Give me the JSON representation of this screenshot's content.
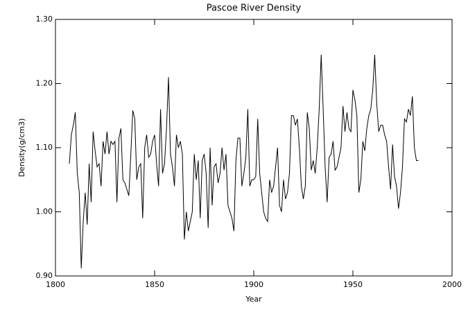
{
  "chart_data": {
    "type": "line",
    "title": "Pascoe River Density",
    "xlabel": "Year",
    "ylabel": "Density(g/cm3)",
    "xlim": [
      1800,
      2000
    ],
    "xticks": [
      1800,
      1850,
      1900,
      1950,
      2000
    ],
    "ylim": [
      0.9,
      1.3
    ],
    "yticks": [
      {
        "value": 0.9,
        "label": "0.90"
      },
      {
        "value": 1.0,
        "label": "1.00"
      },
      {
        "value": 1.1,
        "label": "1.10"
      },
      {
        "value": 1.2,
        "label": "1.20"
      },
      {
        "value": 1.3,
        "label": "1.30"
      }
    ],
    "x": [
      1807,
      1808,
      1809,
      1810,
      1811,
      1812,
      1813,
      1814,
      1815,
      1816,
      1817,
      1818,
      1819,
      1820,
      1821,
      1822,
      1823,
      1824,
      1825,
      1826,
      1827,
      1828,
      1829,
      1830,
      1831,
      1832,
      1833,
      1834,
      1835,
      1836,
      1837,
      1838,
      1839,
      1840,
      1841,
      1842,
      1843,
      1844,
      1845,
      1846,
      1847,
      1848,
      1849,
      1850,
      1851,
      1852,
      1853,
      1854,
      1855,
      1856,
      1857,
      1858,
      1859,
      1860,
      1861,
      1862,
      1863,
      1864,
      1865,
      1866,
      1867,
      1868,
      1869,
      1870,
      1871,
      1872,
      1873,
      1874,
      1875,
      1876,
      1877,
      1878,
      1879,
      1880,
      1881,
      1882,
      1883,
      1884,
      1885,
      1886,
      1887,
      1888,
      1889,
      1890,
      1891,
      1892,
      1893,
      1894,
      1895,
      1896,
      1897,
      1898,
      1899,
      1900,
      1901,
      1902,
      1903,
      1904,
      1905,
      1906,
      1907,
      1908,
      1909,
      1910,
      1911,
      1912,
      1913,
      1914,
      1915,
      1916,
      1917,
      1918,
      1919,
      1920,
      1921,
      1922,
      1923,
      1924,
      1925,
      1926,
      1927,
      1928,
      1929,
      1930,
      1931,
      1932,
      1933,
      1934,
      1935,
      1936,
      1937,
      1938,
      1939,
      1940,
      1941,
      1942,
      1943,
      1944,
      1945,
      1946,
      1947,
      1948,
      1949,
      1950,
      1951,
      1952,
      1953,
      1954,
      1955,
      1956,
      1957,
      1958,
      1959,
      1960,
      1961,
      1962,
      1963,
      1964,
      1965,
      1966,
      1967,
      1968,
      1969,
      1970,
      1971,
      1972,
      1973,
      1974,
      1975,
      1976,
      1977,
      1978,
      1979,
      1980,
      1981,
      1982,
      1983
    ],
    "series": [
      {
        "color": "#000000",
        "values": [
          1.075,
          1.12,
          1.135,
          1.155,
          1.06,
          1.03,
          0.912,
          0.985,
          1.03,
          0.98,
          1.075,
          1.015,
          1.125,
          1.095,
          1.07,
          1.075,
          1.04,
          1.11,
          1.09,
          1.125,
          1.09,
          1.11,
          1.105,
          1.11,
          1.015,
          1.115,
          1.13,
          1.05,
          1.045,
          1.035,
          1.025,
          1.09,
          1.158,
          1.145,
          1.05,
          1.07,
          1.075,
          0.99,
          1.1,
          1.12,
          1.085,
          1.09,
          1.11,
          1.12,
          1.075,
          1.04,
          1.16,
          1.06,
          1.075,
          1.13,
          1.21,
          1.09,
          1.07,
          1.04,
          1.12,
          1.1,
          1.11,
          1.09,
          0.957,
          1.0,
          0.97,
          0.985,
          1.0,
          1.09,
          1.05,
          1.08,
          0.99,
          1.08,
          1.09,
          1.06,
          0.975,
          1.1,
          1.01,
          1.07,
          1.075,
          1.045,
          1.06,
          1.1,
          1.065,
          1.09,
          1.01,
          1.0,
          0.99,
          0.97,
          1.08,
          1.115,
          1.115,
          1.04,
          1.06,
          1.085,
          1.16,
          1.04,
          1.05,
          1.05,
          1.055,
          1.145,
          1.06,
          1.03,
          1.0,
          0.99,
          0.985,
          1.05,
          1.03,
          1.04,
          1.07,
          1.1,
          1.01,
          1.0,
          1.05,
          1.02,
          1.03,
          1.06,
          1.15,
          1.15,
          1.135,
          1.145,
          1.1,
          1.04,
          1.02,
          1.04,
          1.155,
          1.13,
          1.065,
          1.08,
          1.06,
          1.1,
          1.16,
          1.245,
          1.16,
          1.07,
          1.015,
          1.085,
          1.09,
          1.11,
          1.065,
          1.07,
          1.085,
          1.1,
          1.165,
          1.125,
          1.155,
          1.13,
          1.125,
          1.19,
          1.175,
          1.15,
          1.03,
          1.05,
          1.11,
          1.095,
          1.13,
          1.15,
          1.16,
          1.19,
          1.245,
          1.17,
          1.125,
          1.135,
          1.135,
          1.12,
          1.11,
          1.07,
          1.035,
          1.105,
          1.055,
          1.04,
          1.005,
          1.03,
          1.07,
          1.145,
          1.14,
          1.16,
          1.15,
          1.18,
          1.1,
          1.08,
          1.08
        ]
      }
    ]
  }
}
